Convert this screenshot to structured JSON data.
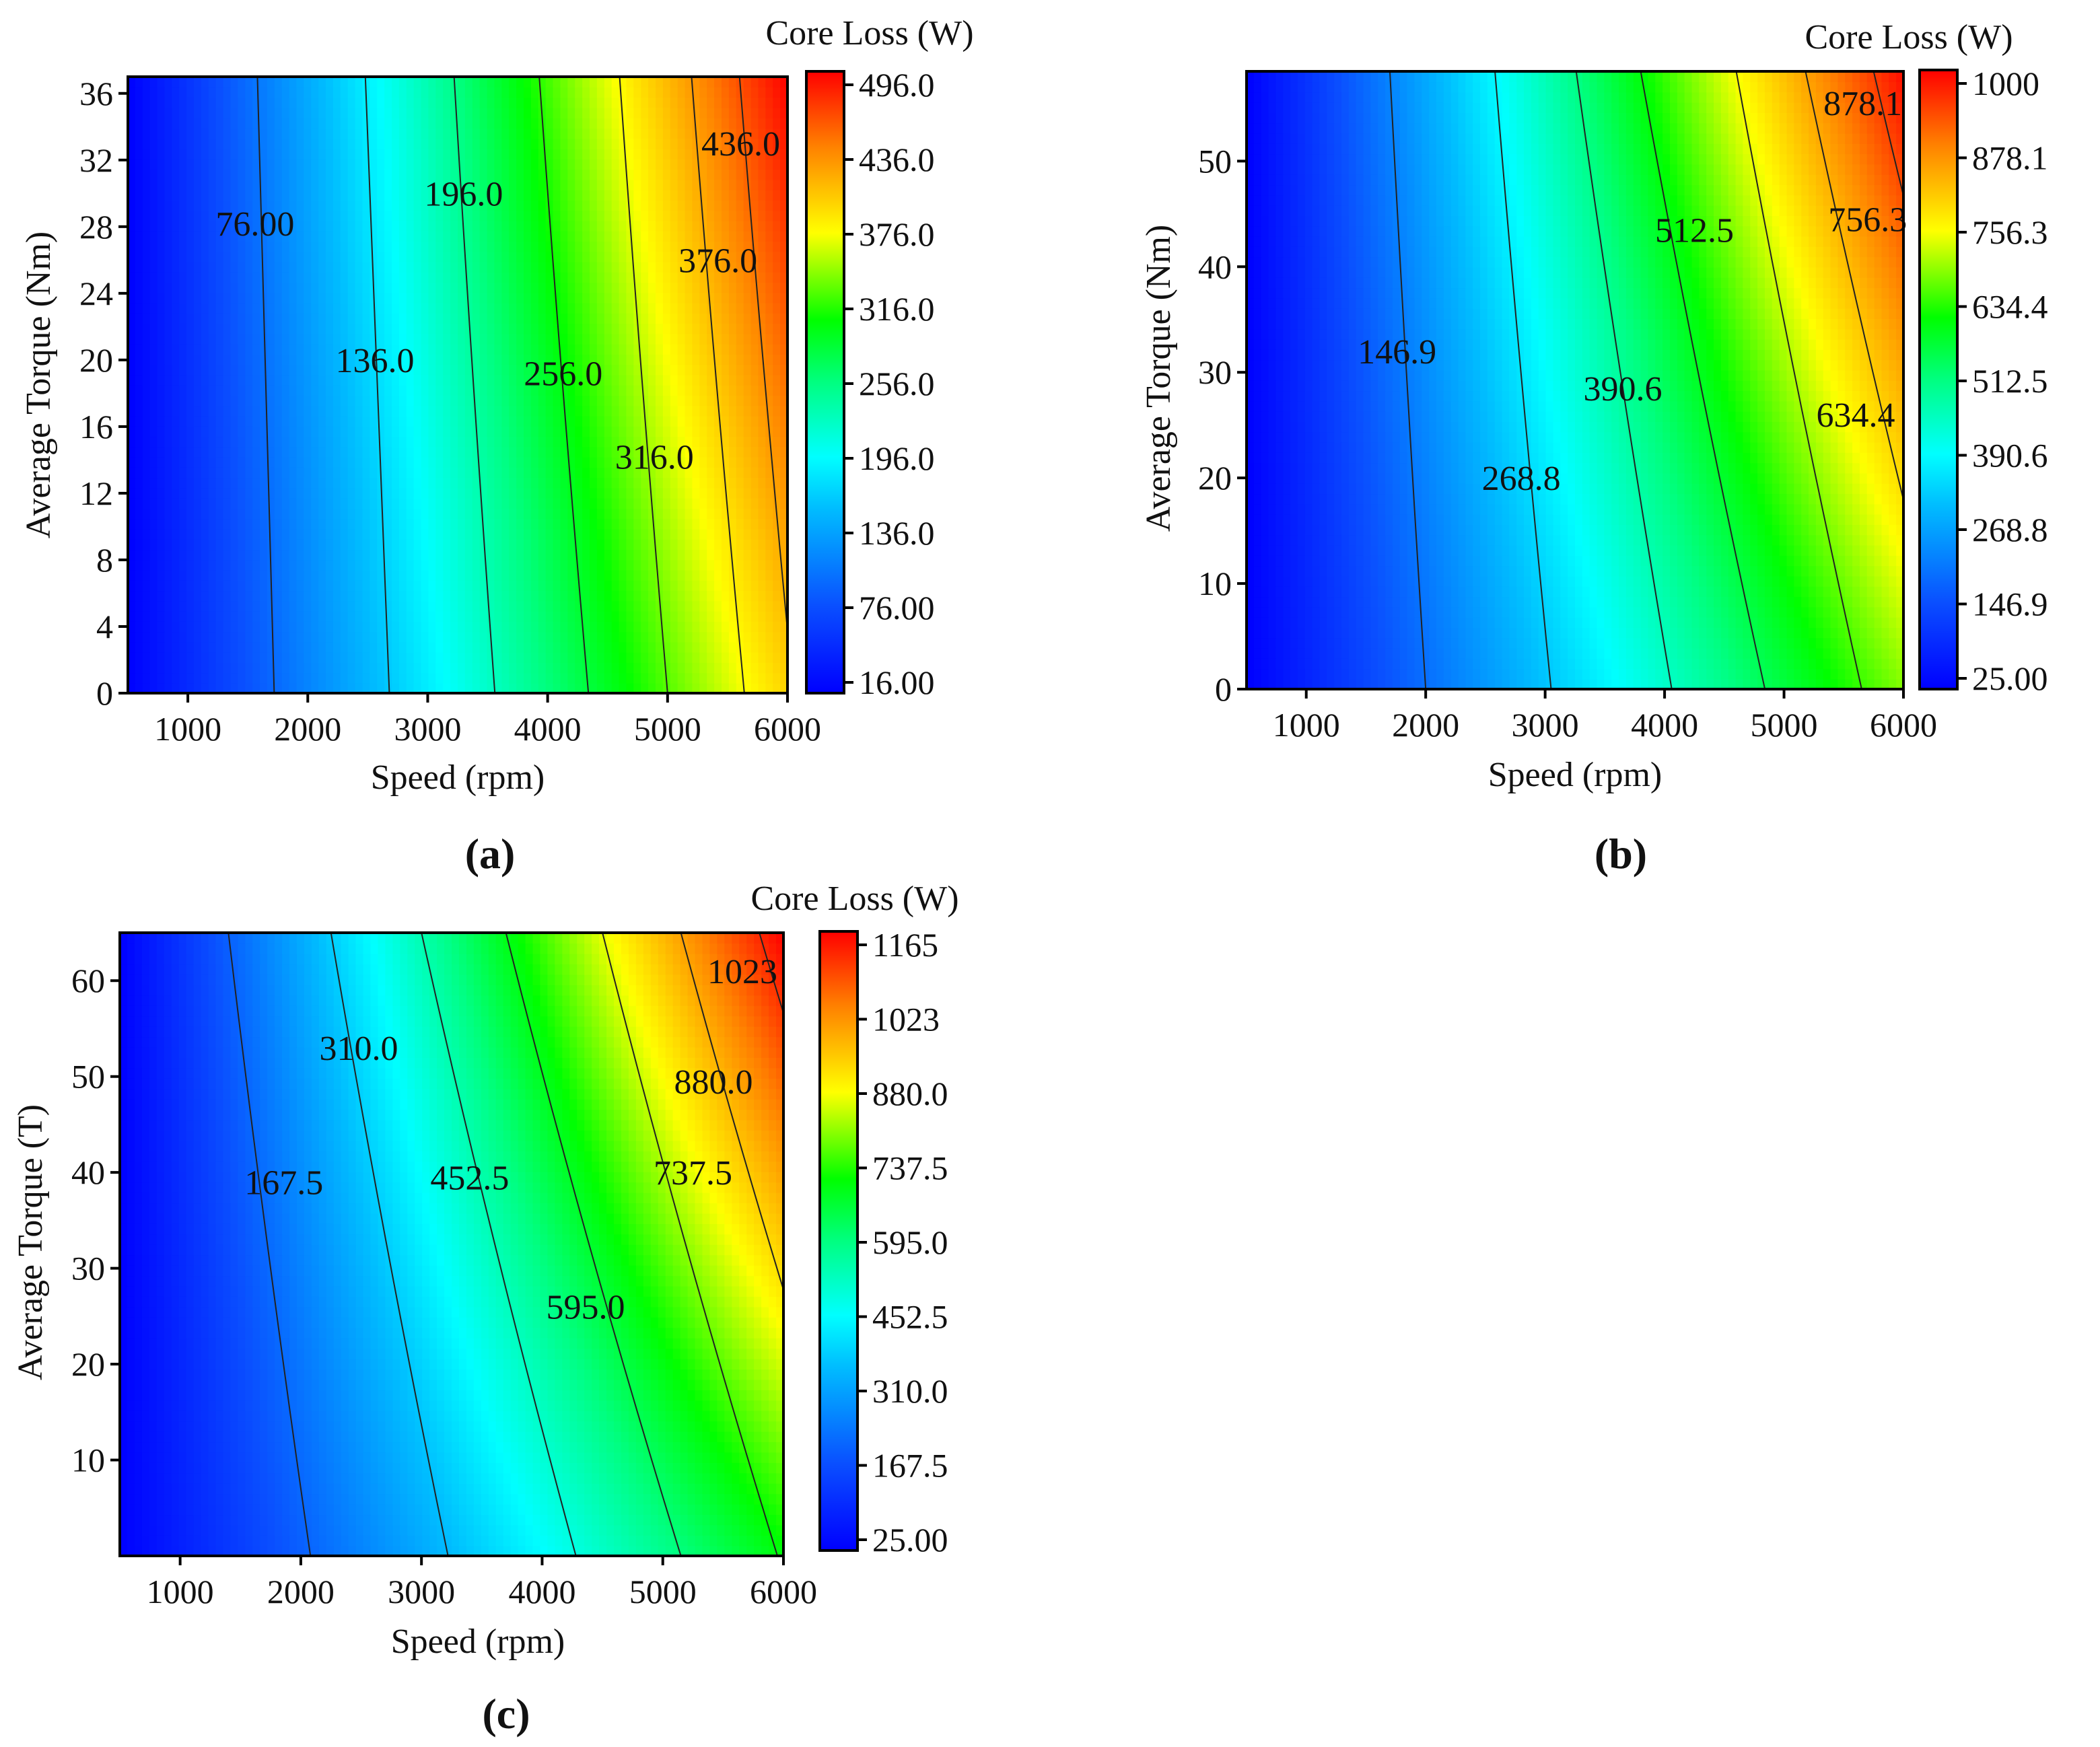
{
  "chart_data": [
    {
      "type": "heatmap",
      "subtype": "filled-contour",
      "panel_label": "(a)",
      "xlabel": "Speed (rpm)",
      "ylabel": "Average Torque (Nm)",
      "colorbar_title": "Core Loss (W)",
      "xlim": [
        500,
        6000
      ],
      "ylim": [
        0,
        37
      ],
      "xticks": [
        1000,
        2000,
        3000,
        4000,
        5000,
        6000
      ],
      "yticks": [
        0,
        4,
        8,
        12,
        16,
        20,
        24,
        28,
        32,
        36
      ],
      "value_range": [
        16,
        516
      ],
      "colorbar_ticks": [
        "496.0",
        "436.0",
        "376.0",
        "316.0",
        "256.0",
        "196.0",
        "136.0",
        "76.00",
        "16.00"
      ],
      "contour_levels": [
        {
          "value": 76,
          "label": "76.00",
          "x_at_ymin": 1720,
          "x_at_ymax": 1580,
          "label_at": [
            1560,
            28.2
          ]
        },
        {
          "value": 136,
          "label": "136.0",
          "x_at_ymin": 2680,
          "x_at_ymax": 2480,
          "label_at": [
            2560,
            20
          ]
        },
        {
          "value": 196,
          "label": "196.0",
          "x_at_ymin": 3560,
          "x_at_ymax": 3220,
          "label_at": [
            3300,
            30
          ]
        },
        {
          "value": 256,
          "label": "256.0",
          "x_at_ymin": 4340,
          "x_at_ymax": 3930,
          "label_at": [
            4130,
            19.2
          ]
        },
        {
          "value": 316,
          "label": "316.0",
          "x_at_ymin": 5000,
          "x_at_ymax": 4600,
          "label_at": [
            4890,
            14.2
          ]
        },
        {
          "value": 376,
          "label": "376.0",
          "x_at_ymin": 5640,
          "x_at_ymax": 5200,
          "label_at": [
            5420,
            26
          ]
        },
        {
          "value": 436,
          "label": "436.0",
          "x_at_ymin": 6050,
          "x_at_ymax": 5600,
          "label_at": [
            5610,
            33
          ]
        }
      ],
      "corner_values": {
        "x_min_y_min": 16,
        "x_max_y_min": 410,
        "x_min_y_max": 16,
        "x_max_y_max": 516
      }
    },
    {
      "type": "heatmap",
      "subtype": "filled-contour",
      "panel_label": "(b)",
      "xlabel": "Speed (rpm)",
      "ylabel": "Average Torque (Nm)",
      "colorbar_title": "Core Loss (W)",
      "xlim": [
        500,
        6000
      ],
      "ylim": [
        0,
        58.5
      ],
      "xticks": [
        1000,
        2000,
        3000,
        4000,
        5000,
        6000
      ],
      "yticks": [
        0,
        10,
        20,
        30,
        40,
        50
      ],
      "value_range": [
        25,
        1000
      ],
      "colorbar_ticks": [
        "1000",
        "878.1",
        "756.3",
        "634.4",
        "512.5",
        "390.6",
        "268.8",
        "146.9",
        "25.00"
      ],
      "contour_levels": [
        {
          "value": 146.9,
          "label": "146.9",
          "x_at_ymin": 2000,
          "x_at_ymax": 1700,
          "label_at": [
            1760,
            32
          ]
        },
        {
          "value": 268.8,
          "label": "268.8",
          "x_at_ymin": 3050,
          "x_at_ymax": 2580,
          "label_at": [
            2800,
            20
          ]
        },
        {
          "value": 390.6,
          "label": "390.6",
          "x_at_ymin": 4060,
          "x_at_ymax": 3260,
          "label_at": [
            3650,
            28.5
          ]
        },
        {
          "value": 512.5,
          "label": "512.5",
          "x_at_ymin": 4840,
          "x_at_ymax": 3800,
          "label_at": [
            4250,
            43.5
          ]
        },
        {
          "value": 634.4,
          "label": "634.4",
          "x_at_ymin": 5650,
          "x_at_ymax": 4600,
          "label_at": [
            5600,
            26
          ]
        },
        {
          "value": 756.3,
          "label": "756.3",
          "x_at_ymin": 6400,
          "x_at_ymax": 5180,
          "label_at": [
            5700,
            44.5
          ]
        },
        {
          "value": 878.1,
          "label": "878.1",
          "x_at_ymin": 7100,
          "x_at_ymax": 5750,
          "label_at": [
            5660,
            55.5
          ]
        }
      ],
      "corner_values": {
        "x_min_y_min": 25,
        "x_max_y_min": 680,
        "x_min_y_max": 25,
        "x_max_y_max": 990
      }
    },
    {
      "type": "heatmap",
      "subtype": "filled-contour",
      "panel_label": "(c)",
      "xlabel": "Speed (rpm)",
      "ylabel": "Average Torque (T)",
      "colorbar_title": "Core Loss (W)",
      "xlim": [
        500,
        6000
      ],
      "ylim": [
        0,
        65
      ],
      "xticks": [
        1000,
        2000,
        3000,
        4000,
        5000,
        6000
      ],
      "yticks": [
        10,
        20,
        30,
        40,
        50,
        60
      ],
      "value_range": [
        25,
        1165
      ],
      "colorbar_ticks": [
        "1165",
        "1023",
        "880.0",
        "737.5",
        "595.0",
        "452.5",
        "310.0",
        "167.5",
        "25.00"
      ],
      "contour_levels": [
        {
          "value": 167.5,
          "label": "167.5",
          "x_at_ymin": 2080,
          "x_at_ymax": 1400,
          "label_at": [
            1860,
            39
          ]
        },
        {
          "value": 310,
          "label": "310.0",
          "x_at_ymin": 3220,
          "x_at_ymax": 2250,
          "label_at": [
            2480,
            53
          ]
        },
        {
          "value": 452.5,
          "label": "452.5",
          "x_at_ymin": 4280,
          "x_at_ymax": 3000,
          "label_at": [
            3400,
            39.5
          ]
        },
        {
          "value": 595,
          "label": "595.0",
          "x_at_ymin": 5150,
          "x_at_ymax": 3700,
          "label_at": [
            4360,
            26
          ]
        },
        {
          "value": 737.5,
          "label": "737.5",
          "x_at_ymin": 5950,
          "x_at_ymax": 4500,
          "label_at": [
            5250,
            40
          ]
        },
        {
          "value": 880,
          "label": "880.0",
          "x_at_ymin": 6700,
          "x_at_ymax": 5150,
          "label_at": [
            5420,
            49.5
          ]
        },
        {
          "value": 1023,
          "label": "1023",
          "x_at_ymin": 7500,
          "x_at_ymax": 5800,
          "label_at": [
            5660,
            61
          ]
        }
      ],
      "corner_values": {
        "x_min_y_min": 25,
        "x_max_y_min": 700,
        "x_min_y_max": 25,
        "x_max_y_max": 1165
      }
    }
  ]
}
